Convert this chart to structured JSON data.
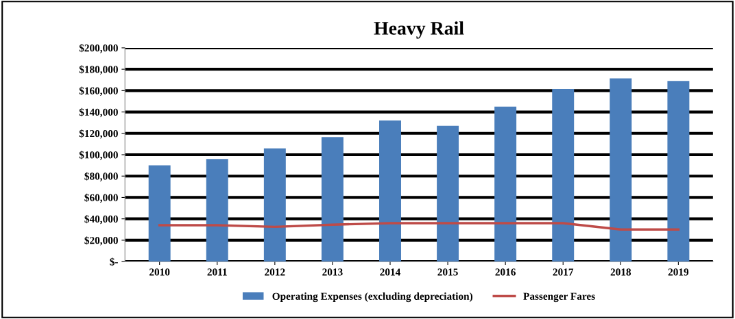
{
  "chart_data": {
    "type": "bar",
    "title": "Heavy Rail",
    "categories": [
      "2010",
      "2011",
      "2012",
      "2013",
      "2014",
      "2015",
      "2016",
      "2017",
      "2018",
      "2019"
    ],
    "series": [
      {
        "name": "Operating Expenses (excluding depreciation)",
        "color": "#4a7ebb",
        "values": [
          90000,
          96000,
          106000,
          116500,
          132000,
          127000,
          145000,
          161500,
          171500,
          169000
        ]
      },
      {
        "name": "Passenger Fares",
        "type": "line",
        "color": "#be4b48",
        "values": [
          34000,
          34000,
          32500,
          34500,
          36000,
          36000,
          36000,
          36000,
          30000,
          30000
        ]
      }
    ],
    "ylim": [
      0,
      200000
    ],
    "yticks": [
      {
        "value": 0,
        "label": "$-"
      },
      {
        "value": 20000,
        "label": "$20,000"
      },
      {
        "value": 40000,
        "label": "$40,000"
      },
      {
        "value": 60000,
        "label": "$60,000"
      },
      {
        "value": 80000,
        "label": "$80,000"
      },
      {
        "value": 100000,
        "label": "$100,000"
      },
      {
        "value": 120000,
        "label": "$120,000"
      },
      {
        "value": 140000,
        "label": "$140,000"
      },
      {
        "value": 160000,
        "label": "$160,000"
      },
      {
        "value": 180000,
        "label": "$180,000"
      },
      {
        "value": 200000,
        "label": "$200,000"
      }
    ],
    "grid": "y",
    "legend": "bottom",
    "marker": "none",
    "line_style": "solid"
  }
}
